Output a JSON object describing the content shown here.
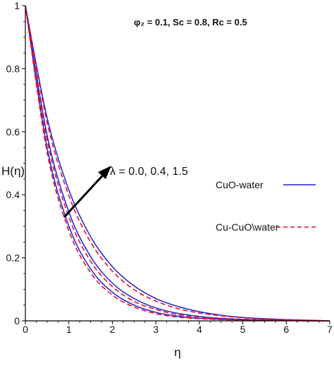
{
  "chart_data": {
    "type": "line",
    "title": "",
    "xlabel": "η",
    "ylabel": "H(η)",
    "xlim": [
      0,
      7
    ],
    "ylim": [
      0,
      1
    ],
    "x_ticks": [
      "0",
      "1",
      "2",
      "3",
      "4",
      "5",
      "6",
      "7"
    ],
    "y_ticks": [
      "0",
      "0.2",
      "0.4",
      "0.6",
      "0.8",
      "1"
    ],
    "grid": false,
    "legend_placement": "right-center",
    "parameters_label": "φ₂ = 0.1, Sc = 0.8, Rc = 0.5",
    "annotation": "λ = 0.0, 0.4, 1.5",
    "colors": {
      "cuo_water": "#1f1fd6",
      "cu_cuo_water": "#e0102b",
      "axis": "#000000"
    },
    "legend": [
      {
        "label": "CuO-water",
        "style": "solid",
        "color": "#1f1fd6"
      },
      {
        "label": "Cu-CuO\\water",
        "style": "dashed",
        "color": "#e0102b"
      }
    ],
    "x": [
      0,
      0.5,
      1,
      1.5,
      2,
      2.5,
      3,
      3.5,
      4,
      4.5,
      5,
      5.5,
      6,
      6.5,
      7
    ],
    "series": [
      {
        "legend_ref": 0,
        "style": "solid",
        "values": [
          1,
          0.549,
          0.301,
          0.165,
          0.091,
          0.05,
          0.027,
          0.015,
          0.008,
          0.005,
          0.003,
          0.002,
          0.001,
          0.0,
          0.0
        ]
      },
      {
        "legend_ref": 0,
        "style": "solid",
        "values": [
          1,
          0.589,
          0.346,
          0.204,
          0.12,
          0.071,
          0.041,
          0.024,
          0.014,
          0.008,
          0.005,
          0.003,
          0.002,
          0.001,
          0.0
        ]
      },
      {
        "legend_ref": 0,
        "style": "solid",
        "values": [
          1,
          0.644,
          0.415,
          0.267,
          0.172,
          0.111,
          0.071,
          0.046,
          0.029,
          0.018,
          0.011,
          0.007,
          0.004,
          0.002,
          0.0
        ]
      },
      {
        "legend_ref": 1,
        "style": "dashed",
        "values": [
          1,
          0.535,
          0.286,
          0.153,
          0.082,
          0.044,
          0.023,
          0.012,
          0.007,
          0.004,
          0.002,
          0.001,
          0.001,
          0.0,
          0.0
        ]
      },
      {
        "legend_ref": 1,
        "style": "dashed",
        "values": [
          1,
          0.574,
          0.33,
          0.189,
          0.109,
          0.062,
          0.036,
          0.02,
          0.012,
          0.007,
          0.004,
          0.002,
          0.001,
          0.001,
          0.0
        ]
      },
      {
        "legend_ref": 1,
        "style": "dashed",
        "values": [
          1,
          0.63,
          0.397,
          0.25,
          0.158,
          0.099,
          0.063,
          0.039,
          0.025,
          0.016,
          0.01,
          0.006,
          0.003,
          0.002,
          0.0
        ]
      }
    ]
  }
}
